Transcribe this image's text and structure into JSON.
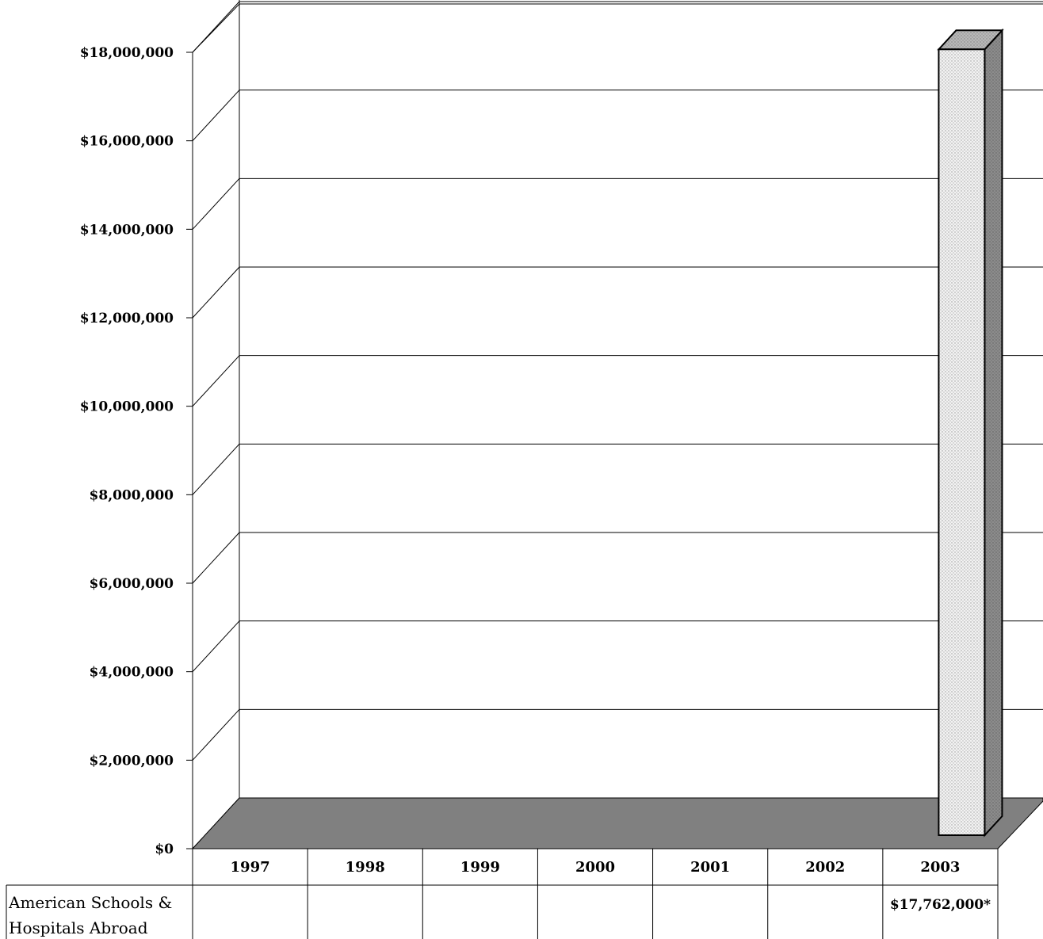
{
  "chart_data": {
    "type": "bar",
    "categories": [
      "1997",
      "1998",
      "1999",
      "2000",
      "2001",
      "2002",
      "2003"
    ],
    "series": [
      {
        "name": "American Schools & Hospitals Abroad",
        "values": [
          null,
          null,
          null,
          null,
          null,
          null,
          17762000
        ]
      }
    ],
    "data_table": {
      "row_label_lines": [
        "American Schools &",
        "Hospitals Abroad"
      ],
      "cells": [
        "",
        "",
        "",
        "",
        "",
        "",
        "$17,762,000*"
      ]
    },
    "y_ticks": [
      "$0",
      "$2,000,000",
      "$4,000,000",
      "$6,000,000",
      "$8,000,000",
      "$10,000,000",
      "$12,000,000",
      "$14,000,000",
      "$16,000,000",
      "$18,000,000"
    ],
    "ylim": [
      0,
      18000000
    ],
    "grid": true,
    "legend": "data table below chart",
    "colors": {
      "floor": "#808080",
      "bar_front": "#eeeeee",
      "bar_side": "#909090",
      "bar_top": "#b0b0b0",
      "lines": "#000000"
    }
  }
}
